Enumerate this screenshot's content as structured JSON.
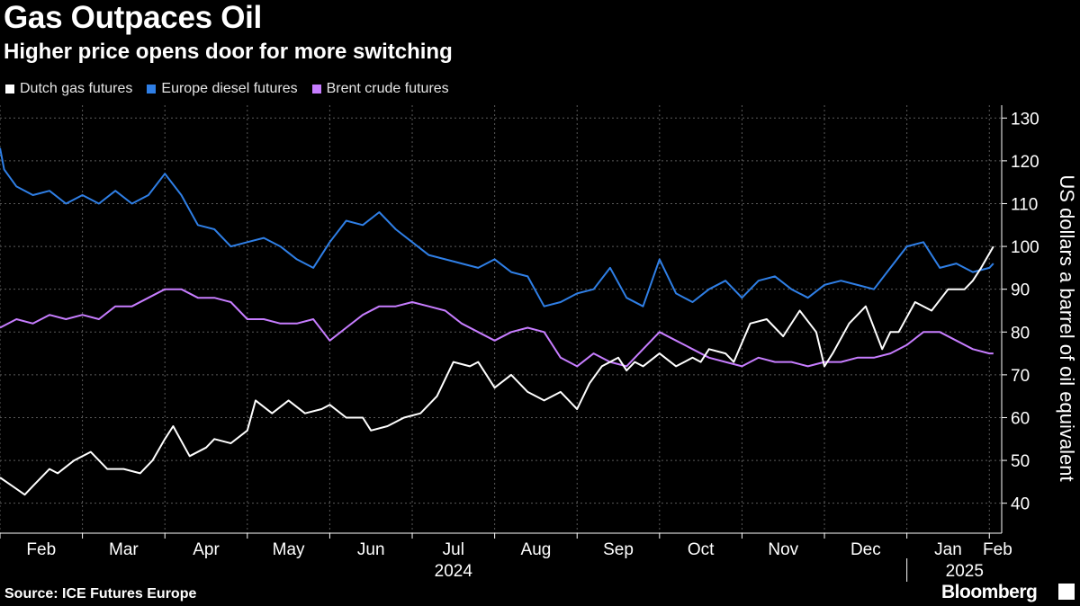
{
  "header": {
    "title": "Gas Outpaces Oil",
    "subtitle": "Higher price opens door for more switching"
  },
  "footer": {
    "source": "Source: ICE Futures Europe",
    "brand": "Bloomberg"
  },
  "colors": {
    "background": "#000000",
    "gas": "#ffffff",
    "diesel": "#2f7fe6",
    "brent": "#c77dff",
    "grid": "#555555"
  },
  "chart_data": {
    "type": "line",
    "title": "Gas Outpaces Oil",
    "subtitle": "Higher price opens door for more switching",
    "ylabel": "US dollars a barrel of oil equivalent",
    "xlabel": "",
    "ylim": [
      33,
      133
    ],
    "yticks": [
      40,
      50,
      60,
      70,
      80,
      90,
      100,
      110,
      120,
      130
    ],
    "x_range": [
      0,
      12.15
    ],
    "months": [
      {
        "label": "Feb",
        "x": 0.5
      },
      {
        "label": "Mar",
        "x": 1.5
      },
      {
        "label": "Apr",
        "x": 2.5
      },
      {
        "label": "May",
        "x": 3.5
      },
      {
        "label": "Jun",
        "x": 4.5
      },
      {
        "label": "Jul",
        "x": 5.5
      },
      {
        "label": "Aug",
        "x": 6.5
      },
      {
        "label": "Sep",
        "x": 7.5
      },
      {
        "label": "Oct",
        "x": 8.5
      },
      {
        "label": "Nov",
        "x": 9.5
      },
      {
        "label": "Dec",
        "x": 10.5
      },
      {
        "label": "Jan",
        "x": 11.5
      },
      {
        "label": "Feb",
        "x": 12.1
      }
    ],
    "year_labels": [
      {
        "label": "2024",
        "x": 5.5
      },
      {
        "label": "2025",
        "x": 11.7
      }
    ],
    "x_unit": "months since start of Feb 2024",
    "legend_position": "top-left",
    "series": [
      {
        "name": "Dutch gas futures",
        "color": "#ffffff",
        "x": [
          0,
          0.15,
          0.3,
          0.4,
          0.6,
          0.7,
          0.9,
          1.1,
          1.3,
          1.5,
          1.7,
          1.85,
          2.0,
          2.1,
          2.3,
          2.5,
          2.6,
          2.8,
          3.0,
          3.1,
          3.3,
          3.5,
          3.7,
          3.9,
          4.0,
          4.2,
          4.4,
          4.5,
          4.7,
          4.9,
          5.1,
          5.3,
          5.5,
          5.7,
          5.8,
          6.0,
          6.2,
          6.4,
          6.6,
          6.8,
          7.0,
          7.15,
          7.3,
          7.5,
          7.6,
          7.7,
          7.8,
          8.0,
          8.2,
          8.4,
          8.5,
          8.6,
          8.8,
          8.9,
          9.1,
          9.3,
          9.5,
          9.7,
          9.9,
          10.0,
          10.1,
          10.3,
          10.5,
          10.7,
          10.8,
          10.9,
          11.1,
          11.3,
          11.5,
          11.7,
          11.8,
          11.9,
          12.05
        ],
        "values": [
          46,
          44,
          42,
          44,
          48,
          47,
          50,
          52,
          48,
          48,
          47,
          50,
          55,
          58,
          51,
          53,
          55,
          54,
          57,
          64,
          61,
          64,
          61,
          62,
          63,
          60,
          60,
          57,
          58,
          60,
          61,
          65,
          73,
          72,
          73,
          67,
          70,
          66,
          64,
          66,
          62,
          68,
          72,
          74,
          71,
          73,
          72,
          75,
          72,
          74,
          73,
          76,
          75,
          73,
          82,
          83,
          79,
          85,
          80,
          72,
          75,
          82,
          86,
          76,
          80,
          80,
          87,
          85,
          90,
          90,
          92,
          95,
          100
        ]
      },
      {
        "name": "Europe diesel futures",
        "color": "#2f7fe6",
        "x": [
          0,
          0.05,
          0.2,
          0.4,
          0.6,
          0.8,
          1.0,
          1.2,
          1.4,
          1.6,
          1.8,
          2.0,
          2.2,
          2.4,
          2.6,
          2.8,
          3.0,
          3.2,
          3.4,
          3.6,
          3.8,
          4.0,
          4.2,
          4.4,
          4.6,
          4.8,
          5.0,
          5.2,
          5.4,
          5.6,
          5.8,
          6.0,
          6.2,
          6.4,
          6.6,
          6.8,
          7.0,
          7.2,
          7.4,
          7.6,
          7.8,
          8.0,
          8.2,
          8.4,
          8.6,
          8.8,
          9.0,
          9.2,
          9.4,
          9.6,
          9.8,
          10.0,
          10.2,
          10.4,
          10.6,
          10.8,
          11.0,
          11.2,
          11.4,
          11.6,
          11.8,
          12.0,
          12.05
        ],
        "values": [
          123,
          118,
          114,
          112,
          113,
          110,
          112,
          110,
          113,
          110,
          112,
          117,
          112,
          105,
          104,
          100,
          101,
          102,
          100,
          97,
          95,
          101,
          106,
          105,
          108,
          104,
          101,
          98,
          97,
          96,
          95,
          97,
          94,
          93,
          86,
          87,
          89,
          90,
          95,
          88,
          86,
          97,
          89,
          87,
          90,
          92,
          88,
          92,
          93,
          90,
          88,
          91,
          92,
          91,
          90,
          95,
          100,
          101,
          95,
          96,
          94,
          95,
          96
        ]
      },
      {
        "name": "Brent crude futures",
        "color": "#c77dff",
        "x": [
          0,
          0.2,
          0.4,
          0.6,
          0.8,
          1.0,
          1.2,
          1.4,
          1.6,
          1.8,
          2.0,
          2.2,
          2.4,
          2.6,
          2.8,
          3.0,
          3.2,
          3.4,
          3.6,
          3.8,
          4.0,
          4.2,
          4.4,
          4.6,
          4.8,
          5.0,
          5.2,
          5.4,
          5.6,
          5.8,
          6.0,
          6.2,
          6.4,
          6.6,
          6.8,
          7.0,
          7.2,
          7.4,
          7.6,
          7.8,
          8.0,
          8.2,
          8.4,
          8.6,
          8.8,
          9.0,
          9.2,
          9.4,
          9.6,
          9.8,
          10.0,
          10.2,
          10.4,
          10.6,
          10.8,
          11.0,
          11.2,
          11.4,
          11.6,
          11.8,
          12.0,
          12.05
        ],
        "values": [
          81,
          83,
          82,
          84,
          83,
          84,
          83,
          86,
          86,
          88,
          90,
          90,
          88,
          88,
          87,
          83,
          83,
          82,
          82,
          83,
          78,
          81,
          84,
          86,
          86,
          87,
          86,
          85,
          82,
          80,
          78,
          80,
          81,
          80,
          74,
          72,
          75,
          73,
          72,
          76,
          80,
          78,
          76,
          74,
          73,
          72,
          74,
          73,
          73,
          72,
          73,
          73,
          74,
          74,
          75,
          77,
          80,
          80,
          78,
          76,
          75,
          75
        ]
      }
    ]
  }
}
